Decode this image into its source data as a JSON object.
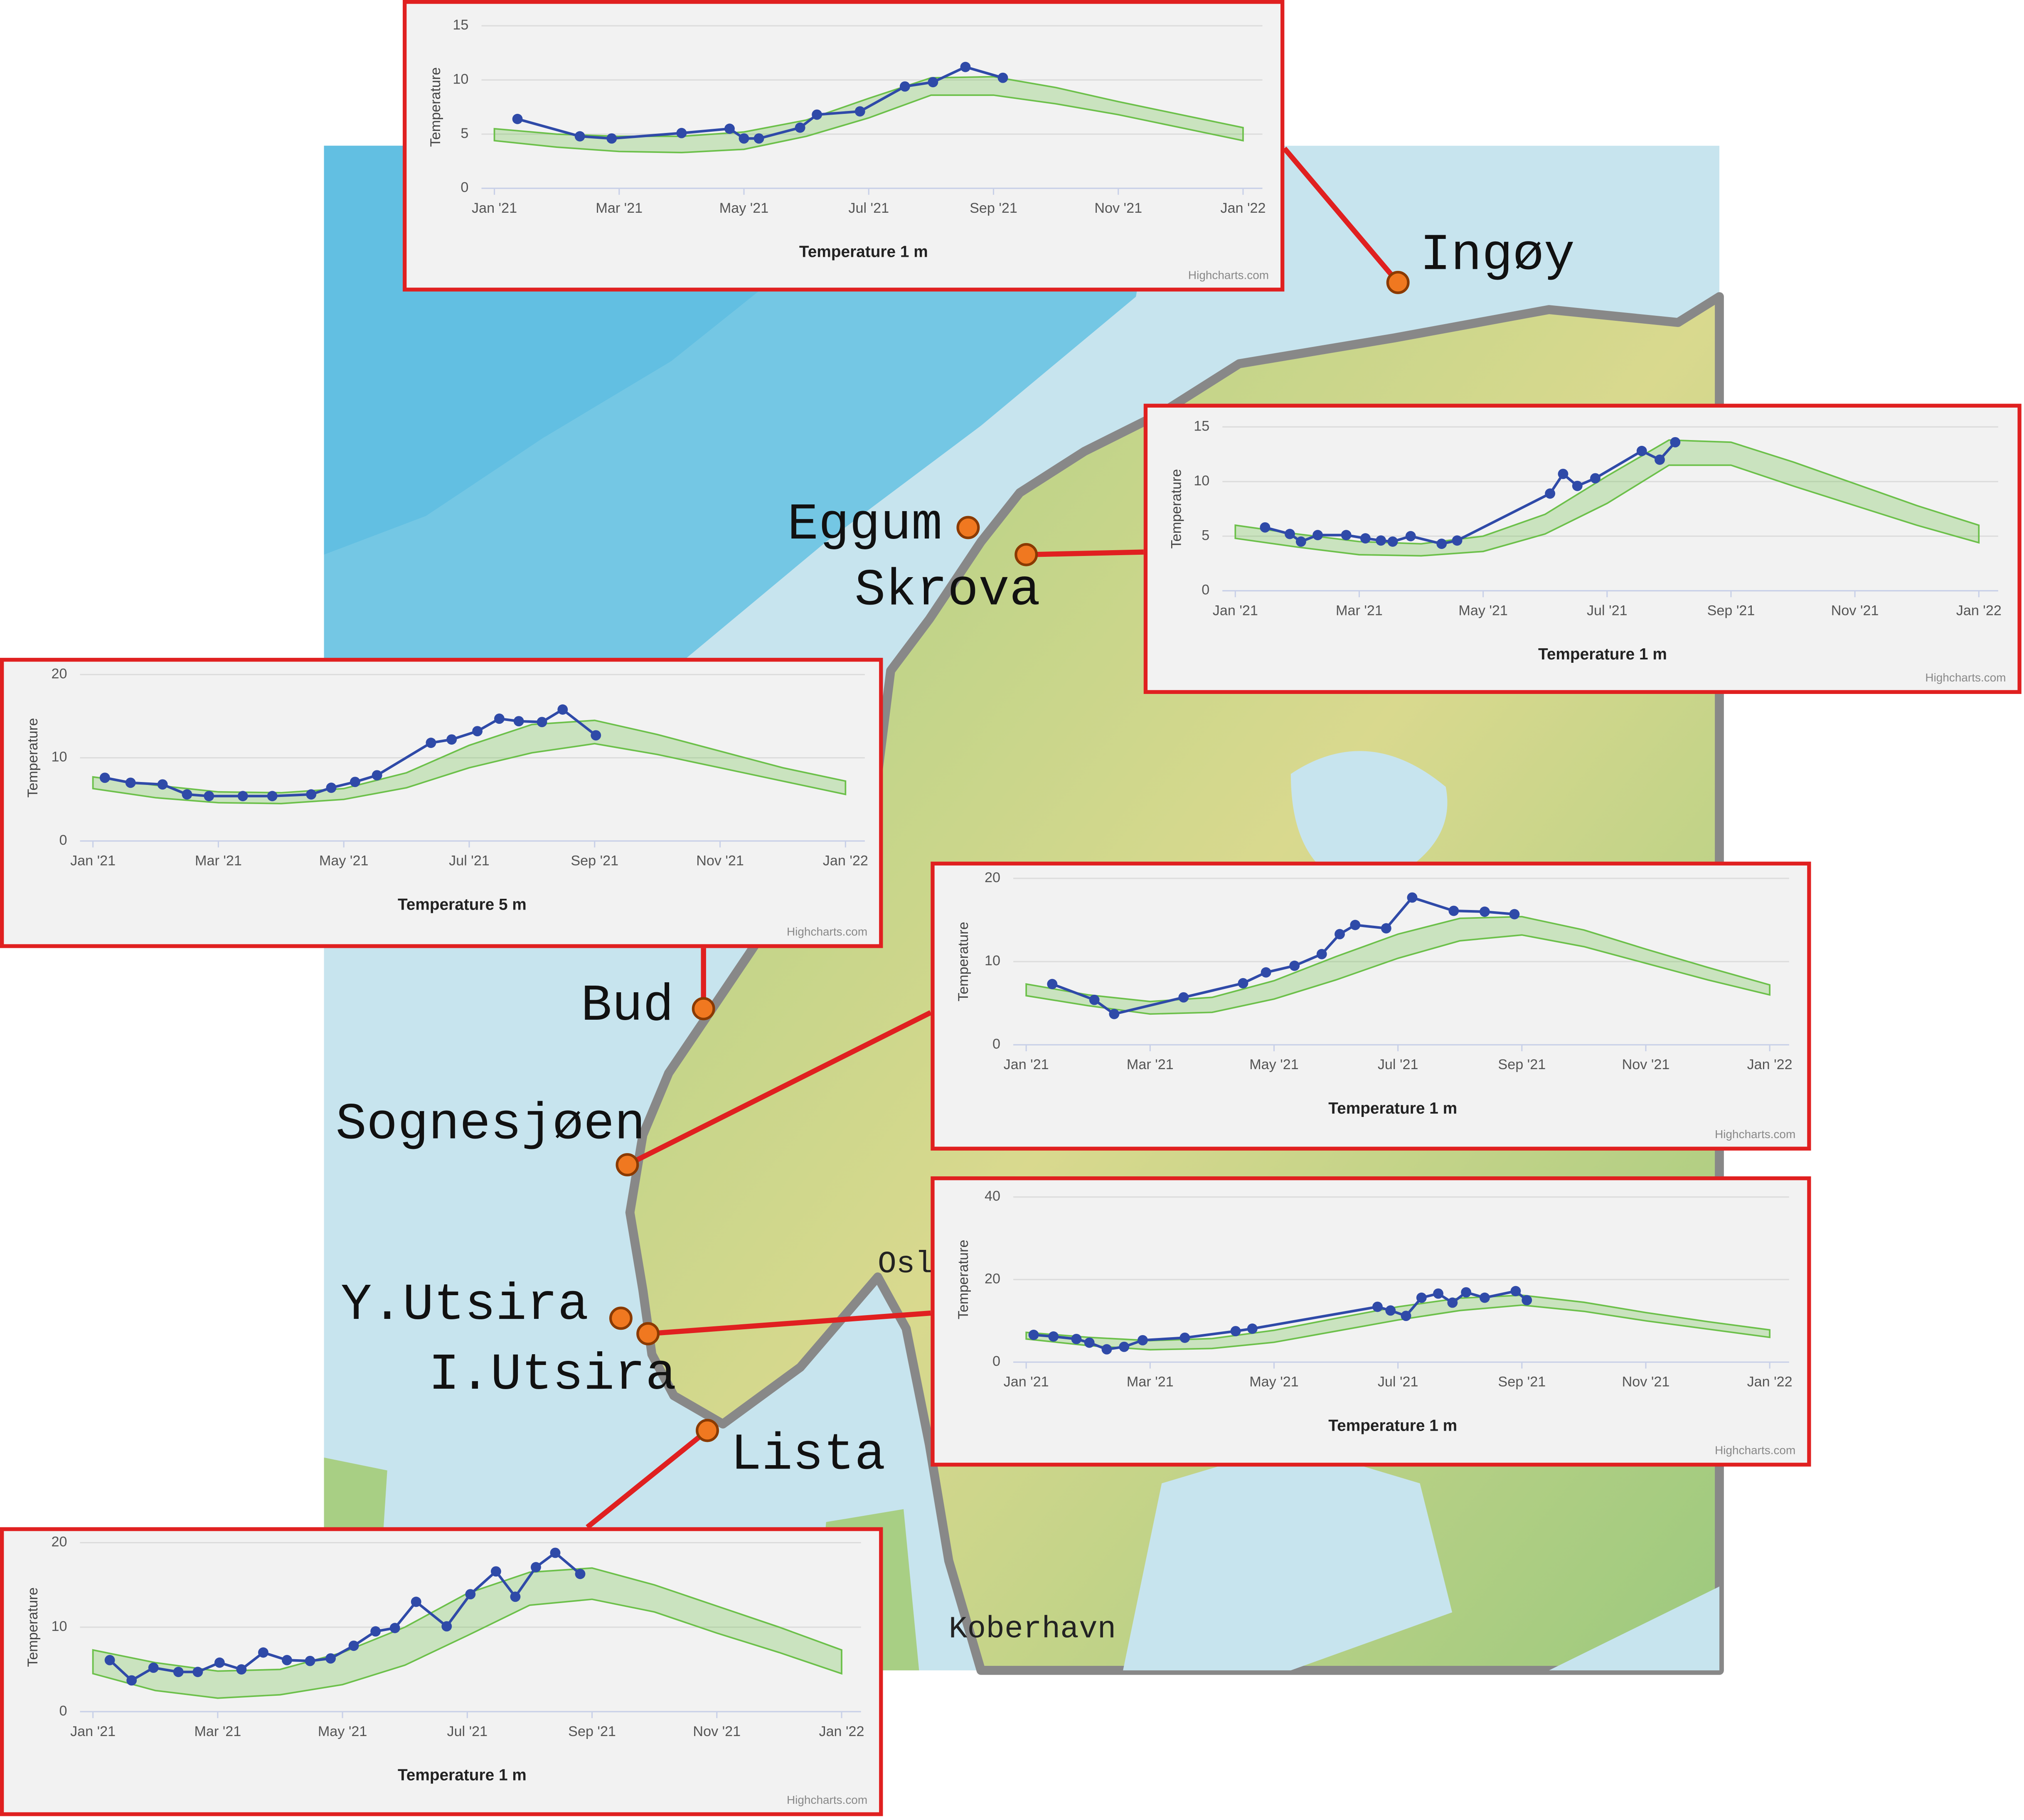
{
  "map": {
    "places": [
      "Ingøy",
      "Eggum",
      "Skrova",
      "Bud",
      "Sognesjøen",
      "Y.Utsira",
      "I.Utsira",
      "Lista"
    ],
    "cities": [
      "Oslo",
      "Koberhavn"
    ]
  },
  "chart_data": [
    {
      "type": "line",
      "x_label": "Temperature 1 m",
      "y_label": "Temperature",
      "credits": "Highcharts.com",
      "grid": true,
      "xlim": [
        0,
        12
      ],
      "xticks": [
        {
          "value": 0,
          "label": "Jan '21"
        },
        {
          "value": 2,
          "label": "Mar '21"
        },
        {
          "value": 4,
          "label": "May '21"
        },
        {
          "value": 6,
          "label": "Jul '21"
        },
        {
          "value": 8,
          "label": "Sep '21"
        },
        {
          "value": 10,
          "label": "Nov '21"
        },
        {
          "value": 12,
          "label": "Jan '22"
        }
      ],
      "ylim": [
        0,
        15
      ],
      "yticks": [
        0,
        5,
        10,
        15
      ],
      "series": [
        {
          "color": "#2f4aa8",
          "x": [
            0.37,
            1.37,
            1.88,
            3.0,
            3.77,
            4.0,
            4.24,
            4.9,
            5.17,
            5.86,
            6.58,
            7.03,
            7.55,
            8.15
          ],
          "values": [
            6.4,
            4.8,
            4.6,
            5.1,
            5.5,
            4.6,
            4.6,
            5.6,
            6.8,
            7.1,
            9.4,
            9.8,
            11.2,
            10.2
          ]
        }
      ],
      "band": {
        "color": "#6cc04a",
        "x": [
          0,
          1,
          2,
          3,
          4,
          5,
          6,
          7,
          8,
          9,
          10,
          11,
          12
        ],
        "low": [
          4.4,
          3.8,
          3.4,
          3.3,
          3.6,
          4.8,
          6.5,
          8.6,
          8.6,
          7.8,
          6.8,
          5.6,
          4.4
        ],
        "high": [
          5.5,
          5.0,
          4.8,
          4.8,
          5.2,
          6.3,
          8.3,
          10.2,
          10.3,
          9.3,
          8.0,
          6.8,
          5.6
        ]
      }
    },
    {
      "type": "line",
      "x_label": "Temperature 1 m",
      "y_label": "Temperature",
      "credits": "Highcharts.com",
      "grid": true,
      "xlim": [
        0,
        12
      ],
      "xticks": [
        {
          "value": 0,
          "label": "Jan '21"
        },
        {
          "value": 2,
          "label": "Mar '21"
        },
        {
          "value": 4,
          "label": "May '21"
        },
        {
          "value": 6,
          "label": "Jul '21"
        },
        {
          "value": 8,
          "label": "Sep '21"
        },
        {
          "value": 10,
          "label": "Nov '21"
        },
        {
          "value": 12,
          "label": "Jan '22"
        }
      ],
      "ylim": [
        0,
        15
      ],
      "yticks": [
        0,
        5,
        10,
        15
      ],
      "series": [
        {
          "color": "#2f4aa8",
          "x": [
            0.48,
            0.88,
            1.06,
            1.33,
            1.79,
            2.1,
            2.35,
            2.54,
            2.83,
            3.33,
            3.58,
            5.08,
            5.29,
            5.52,
            5.81,
            6.56,
            6.85,
            7.1
          ],
          "values": [
            5.8,
            5.2,
            4.5,
            5.1,
            5.1,
            4.8,
            4.6,
            4.5,
            5.0,
            4.3,
            4.6,
            8.9,
            10.7,
            9.6,
            10.3,
            12.8,
            12.0,
            13.6
          ]
        }
      ],
      "band": {
        "color": "#6cc04a",
        "x": [
          0,
          1,
          2,
          3,
          4,
          5,
          6,
          7,
          8,
          9,
          10,
          11,
          12
        ],
        "low": [
          4.8,
          4.0,
          3.3,
          3.2,
          3.6,
          5.2,
          8.0,
          11.5,
          11.5,
          9.6,
          7.8,
          6.0,
          4.4
        ],
        "high": [
          6.0,
          5.2,
          4.5,
          4.3,
          5.0,
          7.0,
          10.5,
          13.8,
          13.6,
          11.8,
          9.8,
          7.8,
          6.0
        ]
      }
    },
    {
      "type": "line",
      "x_label": "Temperature 5 m",
      "y_label": "Temperature",
      "credits": "Highcharts.com",
      "grid": true,
      "xlim": [
        0,
        12
      ],
      "xticks": [
        {
          "value": 0,
          "label": "Jan '21"
        },
        {
          "value": 2,
          "label": "Mar '21"
        },
        {
          "value": 4,
          "label": "May '21"
        },
        {
          "value": 6,
          "label": "Jul '21"
        },
        {
          "value": 8,
          "label": "Sep '21"
        },
        {
          "value": 10,
          "label": "Nov '21"
        },
        {
          "value": 12,
          "label": "Jan '22"
        }
      ],
      "ylim": [
        0,
        20
      ],
      "yticks": [
        0,
        10,
        20
      ],
      "series": [
        {
          "color": "#2f4aa8",
          "x": [
            0.19,
            0.6,
            1.11,
            1.5,
            1.85,
            2.39,
            2.86,
            3.48,
            3.8,
            4.18,
            4.53,
            5.39,
            5.72,
            6.13,
            6.48,
            6.79,
            7.16,
            7.49,
            8.02
          ],
          "values": [
            7.6,
            7.0,
            6.8,
            5.6,
            5.4,
            5.4,
            5.4,
            5.6,
            6.4,
            7.1,
            7.9,
            11.8,
            12.2,
            13.2,
            14.7,
            14.4,
            14.3,
            15.8,
            12.7
          ]
        }
      ],
      "band": {
        "color": "#6cc04a",
        "x": [
          0,
          1,
          2,
          3,
          4,
          5,
          6,
          7,
          8,
          9,
          10,
          11,
          12
        ],
        "low": [
          6.3,
          5.2,
          4.6,
          4.5,
          5.0,
          6.4,
          8.8,
          10.6,
          11.7,
          10.4,
          8.8,
          7.2,
          5.6
        ],
        "high": [
          7.7,
          6.7,
          5.9,
          5.8,
          6.3,
          8.2,
          11.5,
          14.0,
          14.5,
          12.8,
          10.8,
          8.8,
          7.2
        ]
      }
    },
    {
      "type": "line",
      "x_label": "Temperature 1 m",
      "y_label": "Temperature",
      "credits": "Highcharts.com",
      "grid": true,
      "xlim": [
        0,
        12
      ],
      "xticks": [
        {
          "value": 0,
          "label": "Jan '21"
        },
        {
          "value": 2,
          "label": "Mar '21"
        },
        {
          "value": 4,
          "label": "May '21"
        },
        {
          "value": 6,
          "label": "Jul '21"
        },
        {
          "value": 8,
          "label": "Sep '21"
        },
        {
          "value": 10,
          "label": "Nov '21"
        },
        {
          "value": 12,
          "label": "Jan '22"
        }
      ],
      "ylim": [
        0,
        20
      ],
      "yticks": [
        0,
        10,
        20
      ],
      "series": [
        {
          "color": "#2f4aa8",
          "x": [
            0.42,
            1.1,
            1.42,
            2.54,
            3.5,
            3.87,
            4.33,
            4.77,
            5.06,
            5.31,
            5.81,
            6.23,
            6.9,
            7.4,
            7.88
          ],
          "values": [
            7.3,
            5.4,
            3.7,
            5.7,
            7.4,
            8.7,
            9.5,
            10.9,
            13.3,
            14.4,
            14.0,
            17.7,
            16.1,
            16.0,
            15.7
          ]
        }
      ],
      "band": {
        "color": "#6cc04a",
        "x": [
          0,
          1,
          2,
          3,
          4,
          5,
          6,
          7,
          8,
          9,
          10,
          11,
          12
        ],
        "low": [
          5.9,
          4.7,
          3.7,
          3.9,
          5.5,
          7.8,
          10.4,
          12.5,
          13.2,
          11.8,
          9.8,
          7.8,
          6.0
        ],
        "high": [
          7.3,
          6.0,
          5.2,
          5.7,
          7.7,
          10.6,
          13.3,
          15.2,
          15.4,
          13.8,
          11.5,
          9.3,
          7.2
        ]
      }
    },
    {
      "type": "line",
      "x_label": "Temperature 1 m",
      "y_label": "Temperature",
      "credits": "Highcharts.com",
      "grid": true,
      "xlim": [
        0,
        12
      ],
      "xticks": [
        {
          "value": 0,
          "label": "Jan '21"
        },
        {
          "value": 2,
          "label": "Mar '21"
        },
        {
          "value": 4,
          "label": "May '21"
        },
        {
          "value": 6,
          "label": "Jul '21"
        },
        {
          "value": 8,
          "label": "Sep '21"
        },
        {
          "value": 10,
          "label": "Nov '21"
        },
        {
          "value": 12,
          "label": "Jan '22"
        }
      ],
      "ylim": [
        0,
        40
      ],
      "yticks": [
        0,
        20,
        40
      ],
      "series": [
        {
          "color": "#2f4aa8",
          "x": [
            0.12,
            0.44,
            0.81,
            1.02,
            1.3,
            1.58,
            1.88,
            2.56,
            3.38,
            3.65,
            5.67,
            5.88,
            6.13,
            6.38,
            6.65,
            6.88,
            7.1,
            7.4,
            7.9,
            8.08
          ],
          "values": [
            6.6,
            6.2,
            5.6,
            4.7,
            3.1,
            3.7,
            5.3,
            5.9,
            7.5,
            8.1,
            13.4,
            12.5,
            11.2,
            15.6,
            16.6,
            14.4,
            16.9,
            15.6,
            17.2,
            15.0
          ]
        }
      ],
      "band": {
        "color": "#6cc04a",
        "x": [
          0,
          1,
          2,
          3,
          4,
          5,
          6,
          7,
          8,
          9,
          10,
          11,
          12
        ],
        "low": [
          5.6,
          4.0,
          3.0,
          3.3,
          4.8,
          7.5,
          10.2,
          12.5,
          13.8,
          12.3,
          10.0,
          8.0,
          6.0
        ],
        "high": [
          7.2,
          6.0,
          5.2,
          5.7,
          7.7,
          10.6,
          13.4,
          15.5,
          16.2,
          14.5,
          12.0,
          9.8,
          7.8
        ]
      }
    },
    {
      "type": "line",
      "x_label": "Temperature 1 m",
      "y_label": "Temperature",
      "credits": "Highcharts.com",
      "grid": true,
      "xlim": [
        0,
        12
      ],
      "xticks": [
        {
          "value": 0,
          "label": "Jan '21"
        },
        {
          "value": 2,
          "label": "Mar '21"
        },
        {
          "value": 4,
          "label": "May '21"
        },
        {
          "value": 6,
          "label": "Jul '21"
        },
        {
          "value": 8,
          "label": "Sep '21"
        },
        {
          "value": 10,
          "label": "Nov '21"
        },
        {
          "value": 12,
          "label": "Jan '22"
        }
      ],
      "ylim": [
        0,
        20
      ],
      "yticks": [
        0,
        10,
        20
      ],
      "series": [
        {
          "color": "#2f4aa8",
          "x": [
            0.27,
            0.62,
            0.97,
            1.37,
            1.68,
            2.03,
            2.38,
            2.73,
            3.11,
            3.48,
            3.81,
            4.18,
            4.53,
            4.84,
            5.18,
            5.67,
            6.05,
            6.46,
            6.77,
            7.1,
            7.41,
            7.81
          ],
          "values": [
            6.1,
            3.7,
            5.2,
            4.7,
            4.7,
            5.8,
            5.0,
            7.0,
            6.1,
            6.0,
            6.3,
            7.8,
            9.5,
            9.9,
            13.0,
            10.1,
            13.9,
            16.6,
            13.6,
            17.1,
            18.8,
            16.3
          ]
        }
      ],
      "band": {
        "color": "#6cc04a",
        "x": [
          0,
          1,
          2,
          3,
          4,
          5,
          6,
          7,
          8,
          9,
          10,
          11,
          12
        ],
        "low": [
          4.5,
          2.5,
          1.6,
          2.0,
          3.2,
          5.5,
          9.0,
          12.6,
          13.3,
          11.8,
          9.3,
          7.0,
          4.5
        ],
        "high": [
          7.3,
          5.8,
          4.8,
          5.0,
          7.0,
          10.0,
          14.0,
          16.5,
          17.0,
          15.0,
          12.5,
          10.0,
          7.3
        ]
      }
    }
  ]
}
